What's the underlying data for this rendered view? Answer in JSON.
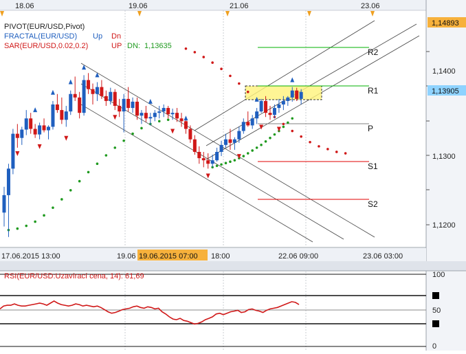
{
  "top_axis": {
    "labels": [
      {
        "text": "18.06",
        "x": 38
      },
      {
        "text": "19.06",
        "x": 203
      },
      {
        "text": "21.06",
        "x": 350
      },
      {
        "text": "23.06",
        "x": 541
      }
    ]
  },
  "legend": {
    "pivot": "PIVOT(EUR/USD,Pivot)",
    "fractal": {
      "name": "FRACTAL(EUR/USD)",
      "up": "Up",
      "dn": "Dn"
    },
    "sar": {
      "name": "SAR(EUR/USD,0.02,0.2)",
      "up": "UP",
      "dn_label": "DN:",
      "dn_value": "1,13635"
    }
  },
  "price_badges": {
    "top": "1,14893",
    "current": "1,13905"
  },
  "pivot_levels": [
    {
      "name": "R2",
      "value": 1.1454,
      "color": "#00b000"
    },
    {
      "name": "R1",
      "value": 1.1399,
      "color": "#00b000"
    },
    {
      "name": "P",
      "value": 1.1345,
      "color": "#808080"
    },
    {
      "name": "S1",
      "value": 1.129,
      "color": "#e00000"
    },
    {
      "name": "S2",
      "value": 1.1235,
      "color": "#e00000"
    }
  ],
  "bottom_axis": {
    "labels": [
      {
        "text": "17.06.2015 13:00",
        "x": 0
      },
      {
        "text": "19.06",
        "x": 170
      },
      {
        "text": "19.06.2015 07:00",
        "x": 200,
        "highlight": true
      },
      {
        "text": "18:00",
        "x": 307
      },
      {
        "text": "22.06 09:00",
        "x": 405
      },
      {
        "text": "23.06 03:00",
        "x": 528
      }
    ]
  },
  "rsi": {
    "title": "RSI(EUR/USD:Uzavírací cena, 14): 61,69",
    "axis": [
      "100",
      "50",
      "0"
    ],
    "values": [
      52,
      56,
      57,
      57,
      59,
      57,
      56,
      56,
      57,
      58,
      59,
      60,
      59,
      57,
      60,
      63,
      60,
      58,
      57,
      56,
      57,
      59,
      58,
      56,
      57,
      56,
      55,
      56,
      54,
      51,
      48,
      46,
      47,
      49,
      51,
      52,
      53,
      55,
      56,
      54,
      53,
      55,
      54,
      52,
      53,
      48,
      45,
      41,
      38,
      37,
      39,
      36,
      35,
      33,
      31,
      32,
      34,
      37,
      39,
      41,
      45,
      46,
      44,
      46,
      48,
      49,
      50,
      47,
      48,
      51,
      52,
      50,
      49,
      47,
      50,
      52,
      53,
      54,
      56,
      58,
      60,
      62,
      61,
      58
    ]
  },
  "chart_data": {
    "type": "candlestick",
    "symbol": "EUR/USD",
    "ylim": [
      1.1175,
      1.1515
    ],
    "y_ticks": [
      "1,1200",
      "1,1300",
      "1,1400"
    ],
    "colors": {
      "up": "#1f5fbf",
      "down": "#d01818",
      "sar": "#1f9a1f"
    },
    "candles": [
      [
        1.1225,
        1.1262,
        1.1205,
        1.125
      ],
      [
        1.125,
        1.1295,
        1.119,
        1.1288
      ],
      [
        1.1288,
        1.1345,
        1.128,
        1.1338
      ],
      [
        1.1338,
        1.1352,
        1.1318,
        1.1332
      ],
      [
        1.1332,
        1.1348,
        1.1322,
        1.1344
      ],
      [
        1.1344,
        1.1372,
        1.1336,
        1.136
      ],
      [
        1.136,
        1.1368,
        1.1338,
        1.1345
      ],
      [
        1.1345,
        1.1352,
        1.1332,
        1.1337
      ],
      [
        1.1337,
        1.1354,
        1.133,
        1.135
      ],
      [
        1.135,
        1.136,
        1.134,
        1.1343
      ],
      [
        1.1343,
        1.135,
        1.133,
        1.1348
      ],
      [
        1.1348,
        1.1385,
        1.1344,
        1.138
      ],
      [
        1.138,
        1.1395,
        1.1368,
        1.1372
      ],
      [
        1.1372,
        1.139,
        1.1352,
        1.1358
      ],
      [
        1.1358,
        1.1378,
        1.1348,
        1.137
      ],
      [
        1.137,
        1.14,
        1.1365,
        1.1395
      ],
      [
        1.1395,
        1.142,
        1.1385,
        1.139
      ],
      [
        1.139,
        1.1398,
        1.136,
        1.1368
      ],
      [
        1.1368,
        1.1422,
        1.1364,
        1.1415
      ],
      [
        1.1415,
        1.1425,
        1.1395,
        1.1402
      ],
      [
        1.1402,
        1.141,
        1.138,
        1.1395
      ],
      [
        1.1395,
        1.1412,
        1.1385,
        1.1405
      ],
      [
        1.1405,
        1.1415,
        1.1388,
        1.1392
      ],
      [
        1.1392,
        1.14,
        1.1378,
        1.1385
      ],
      [
        1.1385,
        1.1404,
        1.138,
        1.1398
      ],
      [
        1.1398,
        1.1402,
        1.1372,
        1.1378
      ],
      [
        1.1378,
        1.1388,
        1.1362,
        1.137
      ],
      [
        1.137,
        1.1395,
        1.134,
        1.1388
      ],
      [
        1.1388,
        1.1405,
        1.137,
        1.1375
      ],
      [
        1.1375,
        1.139,
        1.1368,
        1.1384
      ],
      [
        1.1384,
        1.139,
        1.1358,
        1.1364
      ],
      [
        1.1364,
        1.1372,
        1.1352,
        1.1368
      ],
      [
        1.1368,
        1.1378,
        1.1355,
        1.136
      ],
      [
        1.136,
        1.1368,
        1.135,
        1.1362
      ],
      [
        1.1362,
        1.1372,
        1.1356,
        1.1368
      ],
      [
        1.1368,
        1.1378,
        1.136,
        1.137
      ],
      [
        1.137,
        1.138,
        1.1362,
        1.1375
      ],
      [
        1.1375,
        1.1378,
        1.136,
        1.1366
      ],
      [
        1.1366,
        1.1374,
        1.1358,
        1.1368
      ],
      [
        1.1368,
        1.1375,
        1.1355,
        1.136
      ],
      [
        1.136,
        1.1368,
        1.1348,
        1.1356
      ],
      [
        1.1356,
        1.1362,
        1.1338,
        1.1345
      ],
      [
        1.1345,
        1.135,
        1.1325,
        1.133
      ],
      [
        1.133,
        1.1336,
        1.1308,
        1.1312
      ],
      [
        1.1312,
        1.132,
        1.1295,
        1.1303
      ],
      [
        1.1303,
        1.1312,
        1.129,
        1.13
      ],
      [
        1.13,
        1.131,
        1.1288,
        1.1295
      ],
      [
        1.1295,
        1.1308,
        1.129,
        1.13
      ],
      [
        1.13,
        1.1318,
        1.1298,
        1.1312
      ],
      [
        1.1312,
        1.1328,
        1.1306,
        1.1322
      ],
      [
        1.1322,
        1.1338,
        1.1318,
        1.133
      ],
      [
        1.133,
        1.1345,
        1.1315,
        1.1325
      ],
      [
        1.1325,
        1.1333,
        1.1315,
        1.133
      ],
      [
        1.133,
        1.1348,
        1.1325,
        1.1342
      ],
      [
        1.1342,
        1.136,
        1.1338,
        1.1355
      ],
      [
        1.1355,
        1.137,
        1.1348,
        1.135
      ],
      [
        1.135,
        1.1365,
        1.1345,
        1.136
      ],
      [
        1.136,
        1.1375,
        1.1352,
        1.137
      ],
      [
        1.137,
        1.1388,
        1.1368,
        1.1385
      ],
      [
        1.1385,
        1.1392,
        1.1362,
        1.1368
      ],
      [
        1.1368,
        1.1378,
        1.1358,
        1.1365
      ],
      [
        1.1365,
        1.138,
        1.136,
        1.1375
      ],
      [
        1.1375,
        1.1388,
        1.1368,
        1.138
      ],
      [
        1.138,
        1.1392,
        1.1372,
        1.1385
      ],
      [
        1.1385,
        1.1392,
        1.1378,
        1.139
      ],
      [
        1.139,
        1.1405,
        1.1384,
        1.14
      ],
      [
        1.14,
        1.1404,
        1.1385,
        1.1388
      ],
      [
        1.1388,
        1.1402,
        1.138,
        1.1398
      ]
    ],
    "sar": [
      1.12,
      1.1202,
      1.1206,
      1.1212,
      1.1221,
      1.1232,
      1.1244,
      1.1257,
      1.127,
      1.1283,
      1.1295,
      1.1307,
      1.1318,
      1.1328,
      1.1338,
      1.1346,
      1.1352,
      1.1356,
      1.1358,
      1.146,
      1.1455,
      1.1448,
      1.144,
      1.1431,
      1.1421,
      1.141,
      1.1398,
      1.1386,
      1.1374,
      1.1362,
      1.1352,
      1.1342,
      1.1334,
      1.1326,
      1.132,
      1.1316,
      1.1312,
      1.131
    ],
    "fractals_up": [
      [
        7,
        1.1372
      ],
      [
        11,
        1.1397
      ],
      [
        15,
        1.1412
      ],
      [
        18,
        1.1433
      ],
      [
        21,
        1.1422
      ],
      [
        33,
        1.1384
      ],
      [
        41,
        1.136
      ],
      [
        57,
        1.1387
      ],
      [
        65,
        1.1415
      ]
    ],
    "fractals_down": [
      [
        3,
        1.131
      ],
      [
        8,
        1.132
      ],
      [
        14,
        1.1332
      ],
      [
        25,
        1.1362
      ],
      [
        38,
        1.1342
      ],
      [
        46,
        1.1278
      ],
      [
        53,
        1.1306
      ],
      [
        58,
        1.1348
      ],
      [
        62,
        1.1345
      ]
    ]
  }
}
